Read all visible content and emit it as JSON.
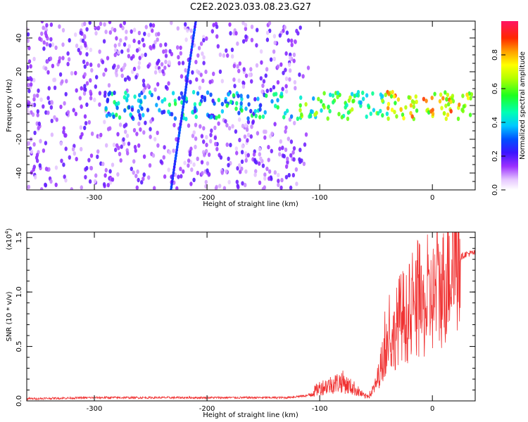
{
  "title": "C2E2.2023.033.08.23.G27",
  "colors": {
    "snr_line": "#f03232",
    "frame": "#000000"
  },
  "chart_data": [
    {
      "type": "heatmap",
      "name": "spectrogram",
      "xlabel": "Height of straight line (km)",
      "ylabel": "Frequency (Hz)",
      "xlim": [
        -360,
        38
      ],
      "ylim": [
        -50,
        50
      ],
      "x_ticks": [
        -300,
        -200,
        -100,
        0
      ],
      "y_ticks": [
        -40,
        -20,
        0,
        20,
        40
      ],
      "colorbar": {
        "label": "Normalized spectral amplitude",
        "range": [
          0,
          1
        ],
        "ticks": [
          "0.0",
          "0.2",
          "0.4",
          "0.6",
          "0.8"
        ],
        "colormap": "rainbow"
      },
      "features": [
        {
          "description": "signal band",
          "x_range": [
            -290,
            38
          ],
          "frequency_center": 0,
          "frequency_halfwidth": 8
        },
        {
          "description": "tilted streak",
          "x_range": [
            -232,
            -210
          ],
          "frequency_range": [
            -50,
            50
          ]
        }
      ]
    },
    {
      "type": "line",
      "name": "snr",
      "xlabel": "Height of straight line (km)",
      "ylabel": "SNR (10 * v/v)",
      "scale_label": "(x10",
      "scale_exponent": "4",
      "scale_close": ")",
      "xlim": [
        -360,
        38
      ],
      "ylim": [
        0,
        1.55
      ],
      "x_ticks": [
        -300,
        -200,
        -100,
        0
      ],
      "y_ticks": [
        0.0,
        0.5,
        1.0,
        1.5
      ],
      "y_tick_labels": [
        "0.0",
        "0.5",
        "1.0",
        "1.5"
      ],
      "series": [
        {
          "x": [
            -360,
            -300,
            -250,
            -200,
            -150,
            -130,
            -110,
            -100,
            -90,
            -80,
            -75,
            -70,
            -60,
            -55,
            -50,
            -45,
            -40,
            -35,
            -30,
            -25,
            -20,
            -15,
            -10,
            -5,
            0,
            5,
            10,
            15,
            20,
            25,
            30,
            38
          ],
          "y": [
            0.02,
            0.03,
            0.03,
            0.03,
            0.03,
            0.03,
            0.05,
            0.12,
            0.15,
            0.18,
            0.14,
            0.12,
            0.04,
            0.06,
            0.15,
            0.35,
            0.55,
            0.55,
            0.75,
            0.8,
            0.7,
            0.85,
            0.8,
            0.85,
            0.95,
            1.0,
            1.05,
            1.25,
            1.3,
            1.32,
            1.35,
            1.36
          ]
        }
      ]
    }
  ]
}
